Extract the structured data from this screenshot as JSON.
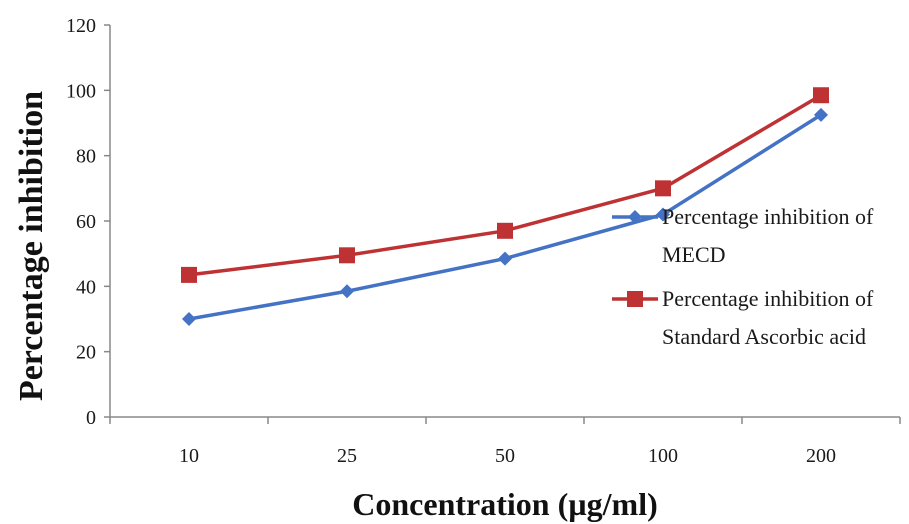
{
  "chart_data": {
    "type": "line",
    "categories": [
      "10",
      "25",
      "50",
      "100",
      "200"
    ],
    "series": [
      {
        "name_lines": [
          "Percentage inhibition of",
          "MECD"
        ],
        "values": [
          30,
          38.5,
          48.5,
          62,
          92.5
        ],
        "color": "#4472c4",
        "marker": "diamond"
      },
      {
        "name_lines": [
          "Percentage inhibition of",
          "Standard Ascorbic acid"
        ],
        "values": [
          43.5,
          49.5,
          57,
          70,
          98.5
        ],
        "color": "#be3234",
        "marker": "square"
      }
    ],
    "xlabel": "Concentration (µg/ml)",
    "ylabel": "Percentage inhibition",
    "ylim": [
      0,
      120
    ],
    "yticks": [
      "0",
      "20",
      "40",
      "60",
      "80",
      "100",
      "120"
    ],
    "grid": false,
    "legend_position": "right"
  }
}
